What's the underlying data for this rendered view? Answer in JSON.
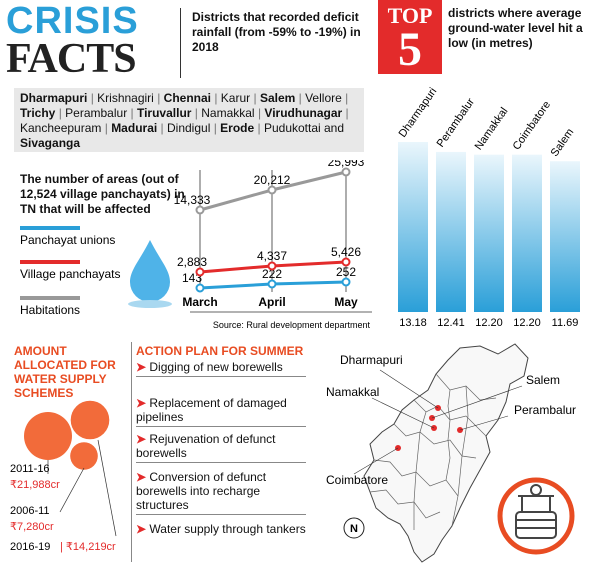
{
  "header": {
    "crisis": "CRISIS",
    "facts": "FACTS",
    "deficit_text": "Districts that recorded deficit rainfall (from -59% to -19%) in 2018"
  },
  "top5": {
    "top": "TOP",
    "num": "5",
    "text": "districts where average ground-water level hit a low (in metres)"
  },
  "districts": [
    {
      "name": "Dharmapuri",
      "bold": true
    },
    {
      "name": "Krishnagiri",
      "bold": false
    },
    {
      "name": "Chennai",
      "bold": true
    },
    {
      "name": "Karur",
      "bold": false
    },
    {
      "name": "Salem",
      "bold": true
    },
    {
      "name": "Vellore",
      "bold": false
    },
    {
      "name": "Trichy",
      "bold": true
    },
    {
      "name": "Perambalur",
      "bold": false
    },
    {
      "name": "Tiruvallur",
      "bold": true
    },
    {
      "name": "Namakkal",
      "bold": false
    },
    {
      "name": "Virudhunagar",
      "bold": true
    },
    {
      "name": "Kancheepuram",
      "bold": false
    },
    {
      "name": "Madurai",
      "bold": true
    },
    {
      "name": "Dindigul",
      "bold": false
    },
    {
      "name": "Erode",
      "bold": true
    },
    {
      "name": "Pudukottai and",
      "bold": false
    },
    {
      "name": "Sivaganga",
      "bold": true
    }
  ],
  "areas": {
    "title": "The number of areas (out of 12,524 village panchayats) in TN that will be affected",
    "source": "Source: Rural development department"
  },
  "chart_data": [
    {
      "type": "line",
      "categories": [
        "March",
        "April",
        "May"
      ],
      "series": [
        {
          "name": "Panchayat unions",
          "values": [
            143,
            222,
            252
          ],
          "labels": [
            "143",
            "222",
            "252"
          ],
          "color": "#2a9fd8"
        },
        {
          "name": "Village panchayats",
          "values": [
            2883,
            4337,
            5426
          ],
          "labels": [
            "2,883",
            "4,337",
            "5,426"
          ],
          "color": "#e32b2b"
        },
        {
          "name": "Habitations",
          "values": [
            14333,
            20212,
            25993
          ],
          "labels": [
            "14,333",
            "20,212",
            "25,993"
          ],
          "color": "#999999"
        }
      ]
    },
    {
      "type": "bar",
      "categories": [
        "Dharmapuri",
        "Perambalur",
        "Namakkal",
        "Coimbatore",
        "Salem"
      ],
      "values": [
        13.18,
        12.41,
        12.2,
        12.2,
        11.69
      ],
      "labels": [
        "13.18",
        "12.41",
        "12.20",
        "12.20",
        "11.69"
      ],
      "color": "#2a9fd8"
    },
    {
      "type": "bubble",
      "series": [
        {
          "name": "2011-16",
          "value": 21988,
          "label": "₹21,988cr"
        },
        {
          "name": "2006-11",
          "value": 7280,
          "label": "₹7,280cr"
        },
        {
          "name": "2016-19",
          "value": 14219,
          "label": "₹14,219cr"
        }
      ],
      "color": "#f26b3a"
    }
  ],
  "amount": {
    "title": "AMOUNT ALLOCATED FOR WATER SUPPLY SCHEMES"
  },
  "action": {
    "title": "ACTION PLAN FOR SUMMER",
    "items": [
      "Digging of new borewells",
      "Replacement of damaged pipelines",
      "Rejuvenation of defunct borewells",
      "Conversion of defunct borewells into recharge structures",
      "Water supply through tankers"
    ]
  },
  "map": {
    "labels": [
      "Dharmapuri",
      "Namakkal",
      "Salem",
      "Perambalur",
      "Coimbatore"
    ],
    "north": "N"
  }
}
